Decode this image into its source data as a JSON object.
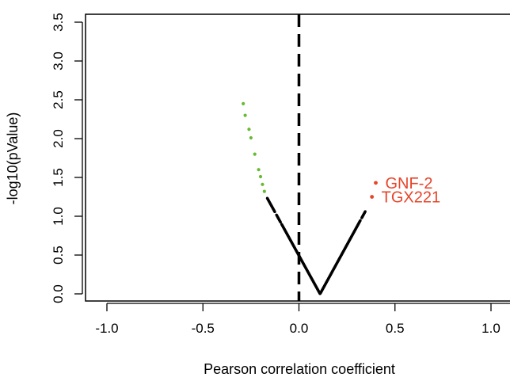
{
  "chart_data": {
    "type": "scatter",
    "title": "",
    "xlabel": "Pearson correlation coefficient",
    "ylabel": "-log10(pValue)",
    "xlim": [
      -1.0,
      1.0
    ],
    "ylim": [
      0.0,
      3.5
    ],
    "x_ticks": [
      "-1.0",
      "-0.5",
      "0.0",
      "0.5",
      "1.0"
    ],
    "y_ticks": [
      "0.0",
      "0.5",
      "1.0",
      "1.5",
      "2.0",
      "2.5",
      "3.0",
      "3.5"
    ],
    "grid": false,
    "legend": "none",
    "reference_line": {
      "x": 0.0,
      "style": "dashed",
      "color": "#000000"
    },
    "curve": {
      "vertex_x": 0.11,
      "min_x": -0.165,
      "max_x": 0.345,
      "gaps": [
        [
          -0.125,
          -0.118
        ],
        [
          -0.095,
          -0.09
        ],
        [
          0.32,
          0.327
        ]
      ]
    },
    "colors": {
      "negative_significant": "#66bb33",
      "positive_significant": "#e8442a",
      "neutral": "#000000"
    },
    "significant_negative": {
      "x": [
        -0.29,
        -0.28,
        -0.26,
        -0.25,
        -0.23,
        -0.21,
        -0.2,
        -0.19,
        -0.18
      ],
      "y": [
        2.45,
        2.3,
        2.12,
        2.01,
        1.8,
        1.6,
        1.51,
        1.41,
        1.32
      ]
    },
    "annotated_points": [
      {
        "label": "GNF-2",
        "x": 0.4,
        "y": 1.43
      },
      {
        "label": "TGX221",
        "x": 0.38,
        "y": 1.25
      }
    ]
  }
}
